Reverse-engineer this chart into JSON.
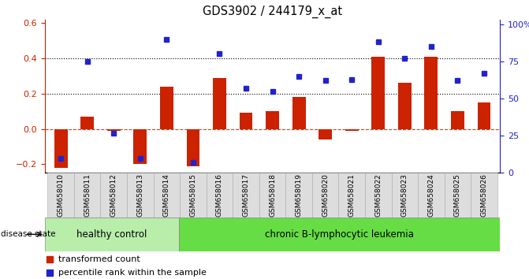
{
  "title": "GDS3902 / 244179_x_at",
  "samples": [
    "GSM658010",
    "GSM658011",
    "GSM658012",
    "GSM658013",
    "GSM658014",
    "GSM658015",
    "GSM658016",
    "GSM658017",
    "GSM658018",
    "GSM658019",
    "GSM658020",
    "GSM658021",
    "GSM658022",
    "GSM658023",
    "GSM658024",
    "GSM658025",
    "GSM658026"
  ],
  "bar_values": [
    -0.22,
    0.07,
    -0.01,
    -0.2,
    0.24,
    -0.21,
    0.29,
    0.09,
    0.1,
    0.18,
    -0.06,
    -0.01,
    0.41,
    0.26,
    0.41,
    0.1,
    0.15
  ],
  "blue_values": [
    10,
    75,
    27,
    10,
    90,
    7,
    80,
    57,
    55,
    65,
    62,
    63,
    88,
    77,
    85,
    62,
    67
  ],
  "healthy_control_count": 5,
  "bar_color": "#cc2200",
  "blue_color": "#2222cc",
  "dotted_line_color": "#000000",
  "zero_line_color": "#cc4422",
  "left_ylim": [
    -0.25,
    0.62
  ],
  "right_ylim": [
    0,
    103.125
  ],
  "left_yticks": [
    -0.2,
    0.0,
    0.2,
    0.4,
    0.6
  ],
  "right_yticks": [
    0,
    25,
    50,
    75,
    100
  ],
  "right_yticklabels": [
    "0",
    "25",
    "50",
    "75",
    "100%"
  ],
  "dotted_lines": [
    0.2,
    0.4
  ],
  "healthy_bg": "#b8eeaa",
  "leukemia_bg": "#66dd44",
  "disease_state_label": "disease state",
  "healthy_label": "healthy control",
  "leukemia_label": "chronic B-lymphocytic leukemia",
  "legend_bar": "transformed count",
  "legend_blue": "percentile rank within the sample",
  "bar_width": 0.5,
  "bg_color": "#ffffff"
}
